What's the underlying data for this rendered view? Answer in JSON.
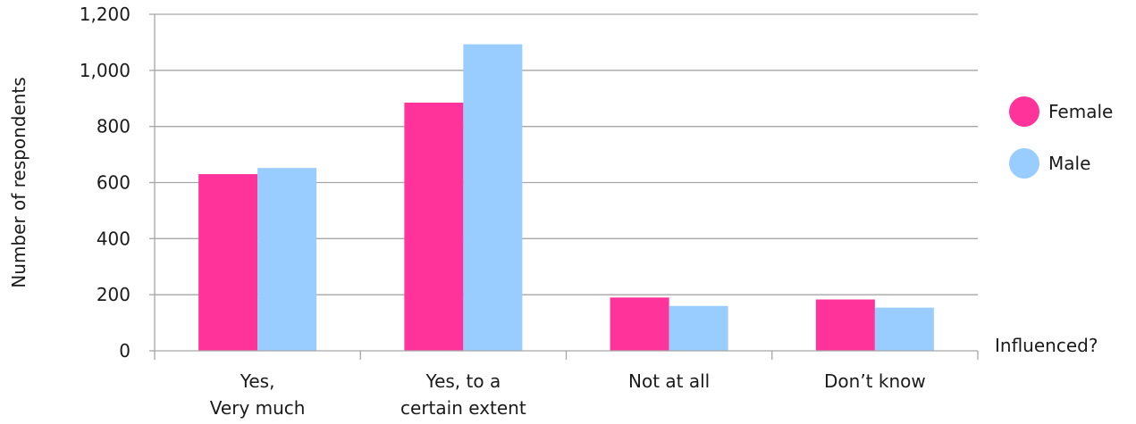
{
  "chart_data": {
    "type": "bar",
    "title": "",
    "xlabel": "Influenced?",
    "ylabel": "Number of respondents",
    "categories": [
      [
        "Yes,",
        "Very much"
      ],
      [
        "Yes, to a",
        "certain extent"
      ],
      [
        "Not at all"
      ],
      [
        "Don’t know"
      ]
    ],
    "series": [
      {
        "name": "Female",
        "color": "#ff3399",
        "values": [
          630,
          885,
          190,
          183
        ]
      },
      {
        "name": "Male",
        "color": "#99ccff",
        "values": [
          652,
          1093,
          160,
          154
        ]
      }
    ],
    "ylim": [
      0,
      1200
    ],
    "yticks": [
      0,
      200,
      400,
      600,
      800,
      1000,
      1200
    ],
    "ytick_labels": [
      "0",
      "200",
      "400",
      "600",
      "800",
      "1,000",
      "1,200"
    ],
    "grid": true,
    "legend": "right"
  }
}
